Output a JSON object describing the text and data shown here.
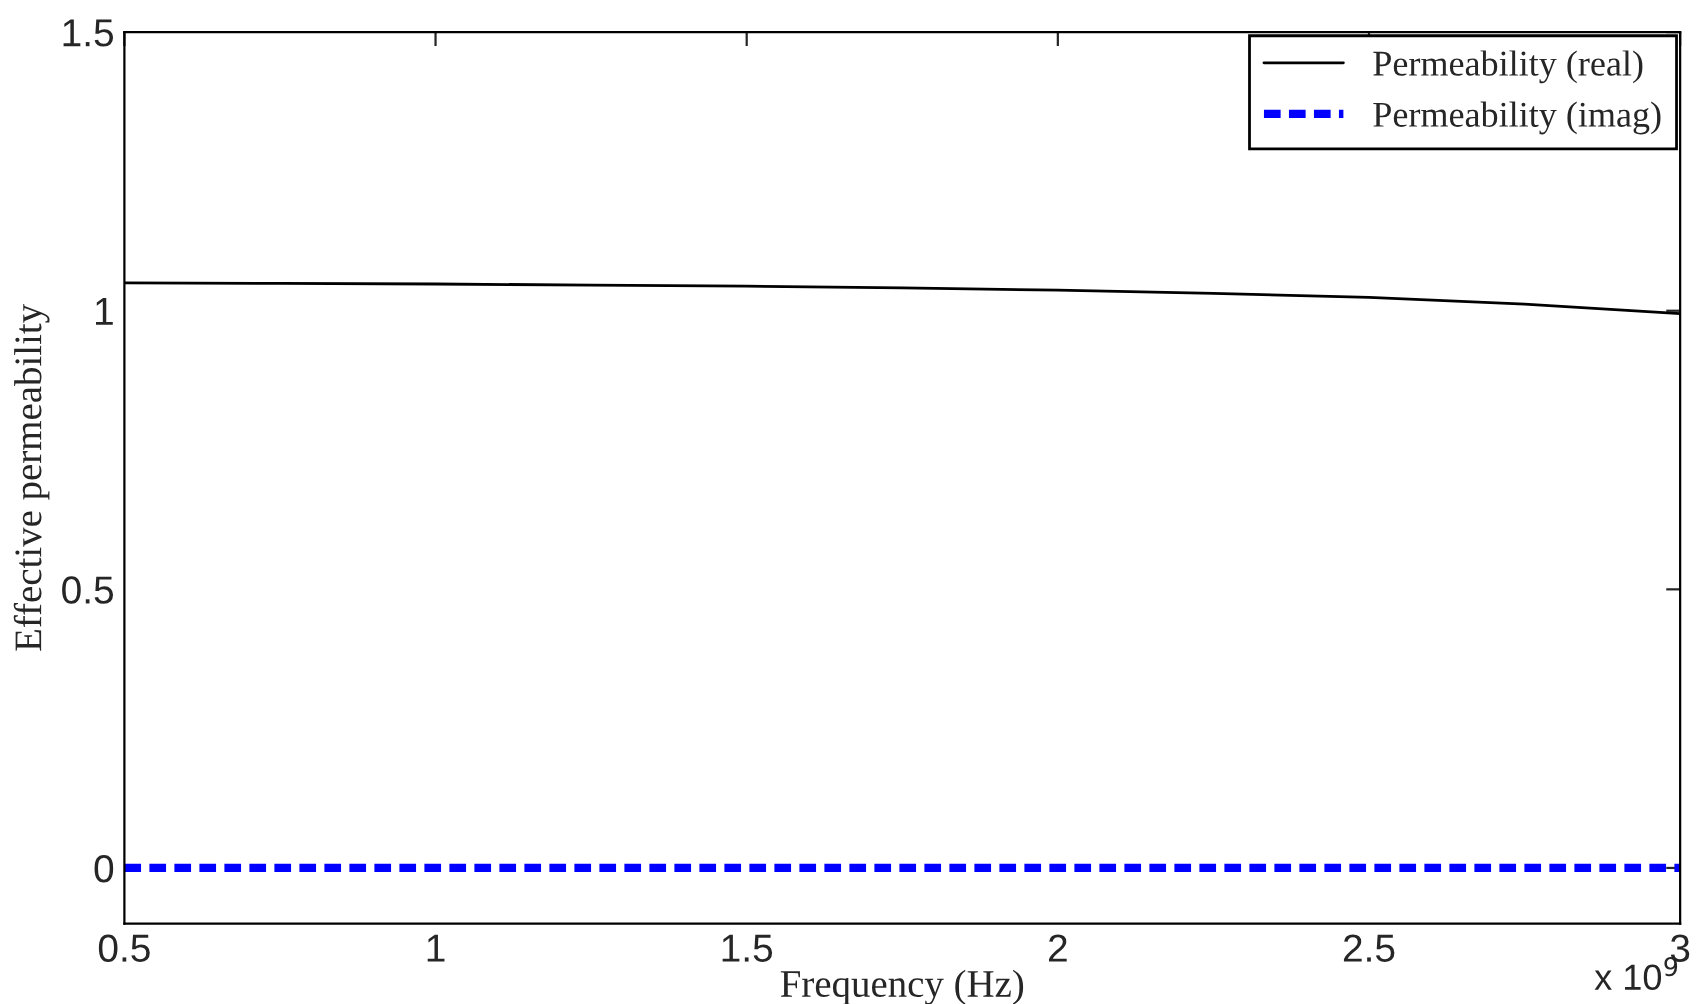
{
  "chart_data": {
    "type": "line",
    "xlabel": "Frequency (Hz)",
    "ylabel": "Effective permeability",
    "x": [
      0.5,
      0.75,
      1,
      1.25,
      1.5,
      1.75,
      2,
      2.25,
      2.5,
      2.75,
      3
    ],
    "series": [
      {
        "name": "Permeability (real)",
        "color": "#000000",
        "line_style": "solid",
        "values": [
          1.05,
          1.049,
          1.048,
          1.046,
          1.044,
          1.041,
          1.037,
          1.031,
          1.024,
          1.012,
          0.995
        ]
      },
      {
        "name": "Permeability (imag)",
        "color": "#0000ff",
        "line_style": "dashed",
        "values": [
          0,
          0,
          0,
          0,
          0,
          0,
          0,
          0,
          0,
          0,
          0
        ]
      }
    ],
    "xlim": [
      0.5,
      3
    ],
    "xticks": [
      0.5,
      1,
      1.5,
      2,
      2.5,
      3
    ],
    "ylim": [
      -0.1,
      1.5
    ],
    "yticks": [
      0,
      0.5,
      1,
      1.5
    ],
    "annotations": [
      "x 10$^{9}$"
    ],
    "grid": false,
    "legend": "top right",
    "marker": "none"
  }
}
